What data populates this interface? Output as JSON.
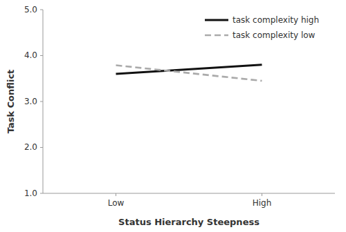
{
  "chart_data": {
    "type": "line",
    "xlabel": "Status Hierarchy Steepness",
    "ylabel": "Task Conflict",
    "categories": [
      "Low",
      "High"
    ],
    "series": [
      {
        "name": "task complexity high",
        "color": "#111111",
        "line_style": "solid",
        "values": [
          3.6,
          3.8
        ]
      },
      {
        "name": "task complexity low",
        "color": "#aaaaaa",
        "line_style": "dashed",
        "values": [
          3.79,
          3.45
        ]
      }
    ],
    "ylim": [
      1.0,
      5.0
    ],
    "yticks": [
      {
        "value": 1.0,
        "label": "1.0"
      },
      {
        "value": 2.0,
        "label": "2.0"
      },
      {
        "value": 3.0,
        "label": "3.0"
      },
      {
        "value": 4.0,
        "label": "4.0"
      },
      {
        "value": 5.0,
        "label": "5.0"
      }
    ],
    "legend": "upper right",
    "grid": false
  }
}
